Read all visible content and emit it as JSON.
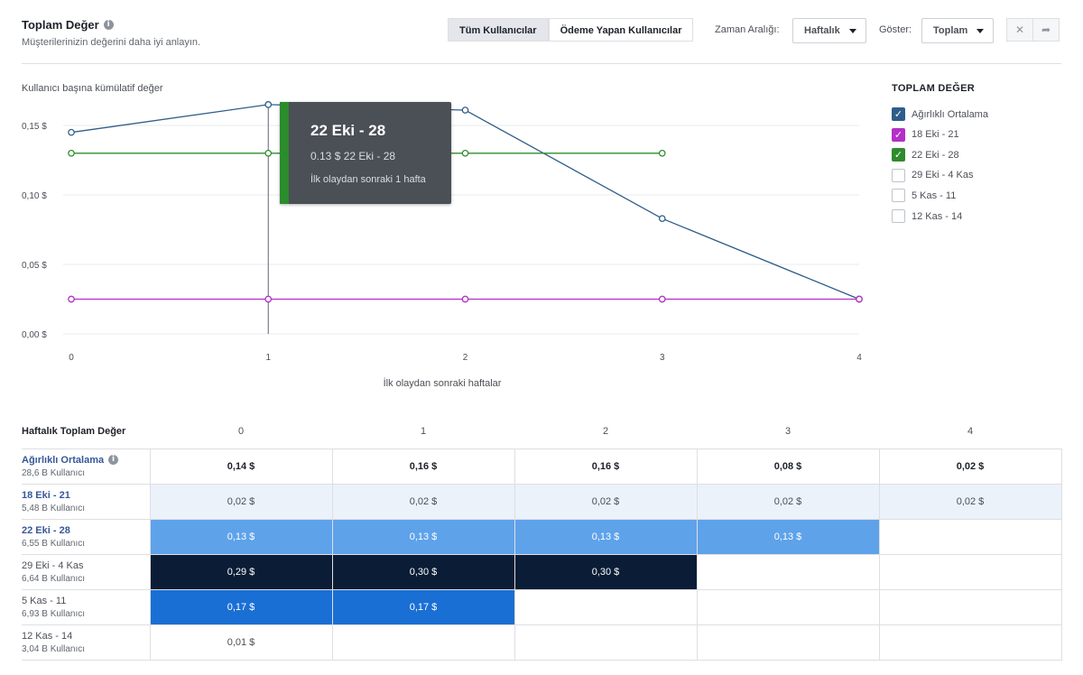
{
  "header": {
    "title": "Toplam Değer",
    "subtitle": "Müşterilerinizin değerini daha iyi anlayın."
  },
  "toolbar": {
    "tab_all": "Tüm Kullanıcılar",
    "tab_paying": "Ödeme Yapan Kullanıcılar",
    "range_label": "Zaman Aralığı:",
    "range_value": "Haftalık",
    "show_label": "Göster:",
    "show_value": "Toplam",
    "pin_icon": "pin-icon",
    "share_icon": "share-icon"
  },
  "legend": {
    "title": "TOPLAM DEĞER",
    "items": [
      {
        "label": "Ağırlıklı Ortalama",
        "checked": true,
        "color": "#2f5d8a"
      },
      {
        "label": "18 Eki - 21",
        "checked": true,
        "color": "#b42fc7"
      },
      {
        "label": "22 Eki - 28",
        "checked": true,
        "color": "#2e8b2e"
      },
      {
        "label": "29 Eki - 4 Kas",
        "checked": false,
        "color": "#ffffff"
      },
      {
        "label": "5 Kas - 11",
        "checked": false,
        "color": "#ffffff"
      },
      {
        "label": "12 Kas - 14",
        "checked": false,
        "color": "#ffffff"
      }
    ]
  },
  "tooltip": {
    "title": "22 Eki - 28",
    "value": "0.13 $ 22 Eki - 28",
    "description": "İlk olaydan sonraki 1 hafta"
  },
  "chart_data": {
    "type": "line",
    "title": "Kullanıcı başına kümülatif değer",
    "xlabel": "İlk olaydan sonraki haftalar",
    "ylabel": "",
    "x": [
      0,
      1,
      2,
      3,
      4
    ],
    "x_tick_labels": [
      "0",
      "1",
      "2",
      "3",
      "4"
    ],
    "ylim": [
      0,
      0.16
    ],
    "y_ticks": [
      0,
      0.05,
      0.1,
      0.15
    ],
    "y_tick_labels": [
      "0,00 $",
      "0,05 $",
      "0,10 $",
      "0,15 $"
    ],
    "grid": true,
    "legend": "right",
    "highlight_x": 1,
    "series": [
      {
        "name": "Ağırlıklı Ortalama",
        "color": "#2f5d8a",
        "values": [
          0.145,
          0.165,
          0.161,
          0.083,
          0.025
        ]
      },
      {
        "name": "18 Eki - 21",
        "color": "#b42fc7",
        "values": [
          0.025,
          0.025,
          0.025,
          0.025,
          0.025
        ]
      },
      {
        "name": "22 Eki - 28",
        "color": "#2e8b2e",
        "values": [
          0.13,
          0.13,
          0.13,
          0.13,
          null
        ]
      }
    ]
  },
  "table": {
    "title": "Haftalık Toplam Değer",
    "columns": [
      "0",
      "1",
      "2",
      "3",
      "4"
    ],
    "rows": [
      {
        "label": "Ağırlıklı Ortalama",
        "sub": "28,6 B Kullanıcı",
        "link": true,
        "info": true,
        "cells": [
          "0,14 $",
          "0,16 $",
          "0,16 $",
          "0,08 $",
          "0,02 $"
        ],
        "bg": "#ffffff",
        "fg": "#1d2129",
        "bold": true
      },
      {
        "label": "18 Eki - 21",
        "sub": "5,48 B Kullanıcı",
        "link": true,
        "cells": [
          "0,02 $",
          "0,02 $",
          "0,02 $",
          "0,02 $",
          "0,02 $"
        ],
        "bg": "#ebf2fa",
        "fg": "#4b4f56"
      },
      {
        "label": "22 Eki - 28",
        "sub": "6,55 B Kullanıcı",
        "link": true,
        "cells": [
          "0,13 $",
          "0,13 $",
          "0,13 $",
          "0,13 $"
        ],
        "bg": "#5ea2ea",
        "fg": "#ffffff"
      },
      {
        "label": "29 Eki - 4 Kas",
        "sub": "6,64 B Kullanıcı",
        "link": false,
        "cells": [
          "0,29 $",
          "0,30 $",
          "0,30 $"
        ],
        "bg": "#0b1d36",
        "fg": "#ffffff"
      },
      {
        "label": "5 Kas - 11",
        "sub": "6,93 B Kullanıcı",
        "link": false,
        "cells": [
          "0,17 $",
          "0,17 $"
        ],
        "bg": "#1a6fd4",
        "fg": "#ffffff"
      },
      {
        "label": "12 Kas - 14",
        "sub": "3,04 B Kullanıcı",
        "link": false,
        "cells": [
          "0,01 $"
        ],
        "bg": "#ffffff",
        "fg": "#4b4f56"
      }
    ]
  }
}
